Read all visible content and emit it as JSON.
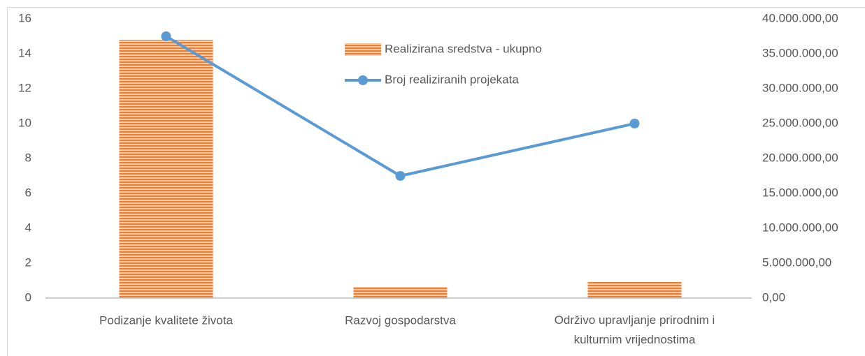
{
  "chart_data": {
    "type": "combo",
    "categories": [
      "Podizanje kvalitete života",
      "Razvoj gospodarstva",
      "Održivo upravljanje prirodnim i kulturnim vrijednostima"
    ],
    "series": [
      {
        "name": "Realizirana sredstva - ukupno",
        "type": "bar",
        "axis": "y2",
        "color": "#ed7d31",
        "values": [
          37000000,
          1600000,
          2300000
        ]
      },
      {
        "name": "Broj realiziranih  projekata",
        "type": "line",
        "axis": "y",
        "color": "#5b9bd5",
        "values": [
          15,
          7,
          10
        ]
      }
    ],
    "ylim": [
      0,
      16
    ],
    "yticks": [
      0,
      2,
      4,
      6,
      8,
      10,
      12,
      14,
      16
    ],
    "y2lim": [
      0,
      40000000
    ],
    "y2ticks": [
      {
        "value": 0,
        "label": "0,00"
      },
      {
        "value": 5000000,
        "label": "5.000.000,00"
      },
      {
        "value": 10000000,
        "label": "10.000.000,00"
      },
      {
        "value": 15000000,
        "label": "15.000.000,00"
      },
      {
        "value": 20000000,
        "label": "20.000.000,00"
      },
      {
        "value": 25000000,
        "label": "25.000.000,00"
      },
      {
        "value": 30000000,
        "label": "30.000.000,00"
      },
      {
        "value": 35000000,
        "label": "35.000.000,00"
      },
      {
        "value": 40000000,
        "label": "40.000.000,00"
      }
    ],
    "grid": false,
    "legend": "top"
  }
}
